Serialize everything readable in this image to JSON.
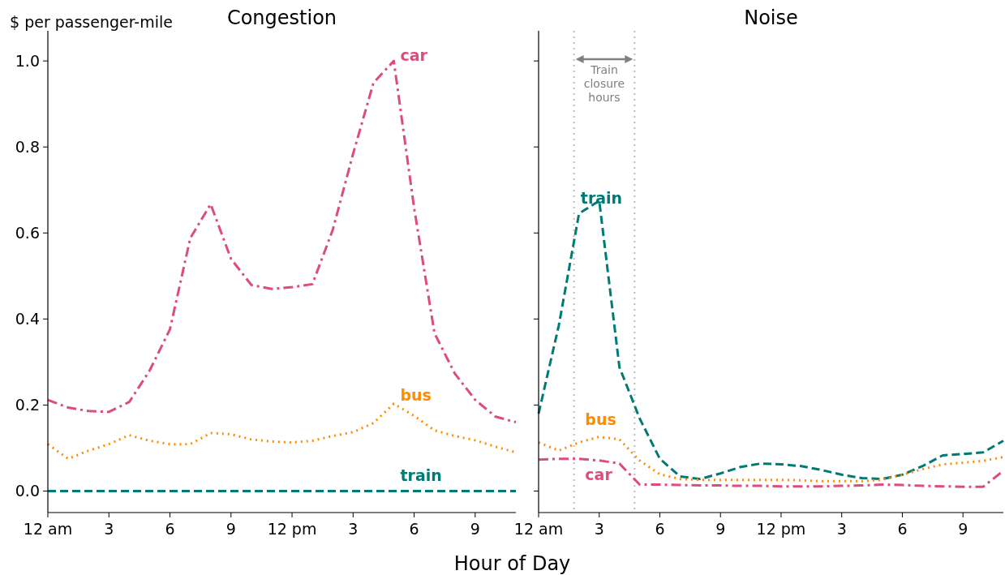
{
  "chart_data": [
    {
      "type": "line",
      "title": "Congestion",
      "ylabel": "$ per passenger-mile",
      "xlabel": "Hour of Day",
      "categories": [
        "12 am",
        null,
        null,
        "3",
        null,
        null,
        "6",
        null,
        null,
        "9",
        null,
        null,
        "12 pm",
        null,
        null,
        "3",
        null,
        null,
        "6",
        null,
        null,
        "9",
        null,
        null
      ],
      "ylim": [
        -0.05,
        1.07
      ],
      "yticks": [
        {
          "value": 0,
          "label": "0.0"
        },
        0.2,
        0.4,
        0.6,
        0.8,
        {
          "value": 1,
          "label": "1.0"
        }
      ],
      "grid": false,
      "series": [
        {
          "name": "car",
          "color": "#dc4c7c",
          "line_style": "dashdot",
          "values": [
            0.212,
            0.194,
            0.186,
            0.184,
            0.207,
            0.28,
            0.376,
            0.588,
            0.667,
            0.54,
            0.479,
            0.47,
            0.474,
            0.481,
            0.607,
            0.784,
            0.949,
            1.0,
            0.658,
            0.367,
            0.273,
            0.212,
            0.173,
            0.16
          ]
        },
        {
          "name": "bus",
          "color": "#ff8c00",
          "line_style": "dotted",
          "values": [
            0.109,
            0.075,
            0.094,
            0.109,
            0.13,
            0.117,
            0.109,
            0.109,
            0.135,
            0.132,
            0.12,
            0.115,
            0.113,
            0.117,
            0.128,
            0.137,
            0.158,
            0.203,
            0.175,
            0.141,
            0.128,
            0.118,
            0.103,
            0.09
          ]
        },
        {
          "name": "train",
          "color": "#007a75",
          "line_style": "dashed",
          "values": [
            0,
            0,
            0,
            0,
            0,
            0,
            0,
            0,
            0,
            0,
            0,
            0,
            0,
            0,
            0,
            0,
            0,
            0,
            0,
            0,
            0,
            0,
            0,
            0
          ]
        }
      ]
    },
    {
      "type": "line",
      "title": "Noise",
      "categories": [
        "12 am",
        null,
        null,
        "3",
        null,
        null,
        "6",
        null,
        null,
        "9",
        null,
        null,
        "12 pm",
        null,
        null,
        "3",
        null,
        null,
        "6",
        null,
        null,
        "9",
        null,
        null
      ],
      "ylim": [
        -0.05,
        1.07
      ],
      "yticks": [
        0,
        0.2,
        0.4,
        0.6,
        0.8,
        1
      ],
      "tick_labels": "x",
      "grid": false,
      "annotations": [
        "Train closure hours"
      ],
      "series": [
        {
          "name": "train",
          "color": "#007a75",
          "line_style": "dashed",
          "values": [
            0.18,
            0.385,
            0.645,
            0.675,
            0.288,
            0.169,
            0.075,
            0.034,
            0.028,
            0.041,
            0.056,
            0.064,
            0.062,
            0.058,
            0.049,
            0.038,
            0.03,
            0.028,
            0.038,
            0.058,
            0.083,
            0.086,
            0.09,
            0.117
          ]
        },
        {
          "name": "bus",
          "color": "#ff8c00",
          "line_style": "dotted",
          "values": [
            0.113,
            0.094,
            0.113,
            0.126,
            0.12,
            0.071,
            0.039,
            0.028,
            0.026,
            0.026,
            0.026,
            0.026,
            0.026,
            0.025,
            0.023,
            0.023,
            0.023,
            0.026,
            0.038,
            0.051,
            0.062,
            0.066,
            0.07,
            0.079
          ]
        },
        {
          "name": "car",
          "color": "#dc4c7c",
          "line_style": "dashdot",
          "values": [
            0.073,
            0.075,
            0.075,
            0.071,
            0.064,
            0.015,
            0.015,
            0.014,
            0.013,
            0.013,
            0.012,
            0.012,
            0.011,
            0.011,
            0.011,
            0.012,
            0.013,
            0.015,
            0.014,
            0.012,
            0.011,
            0.01,
            0.01,
            0.047
          ]
        }
      ]
    }
  ]
}
